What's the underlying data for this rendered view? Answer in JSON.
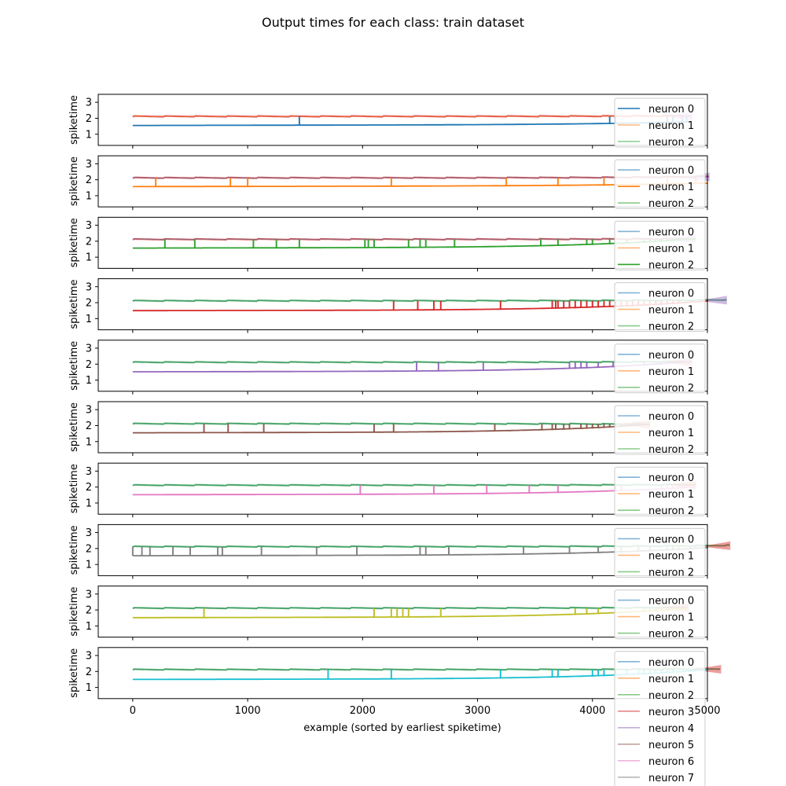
{
  "chart_data": {
    "type": "line",
    "title": "Output times for each class: train dataset",
    "xlabel": "example (sorted by earliest spiketime)",
    "ylabel": "spiketime",
    "xlim": [
      -300,
      5000
    ],
    "ylim": [
      0.3,
      3.5
    ],
    "xticks": [
      0,
      1000,
      2000,
      3000,
      4000,
      5000
    ],
    "yticks": [
      1,
      2,
      3
    ],
    "grid": false,
    "legend_placement": "right",
    "neuron_colors": [
      "#1f77b4",
      "#ff7f0e",
      "#2ca02c",
      "#d62728",
      "#9467bd",
      "#8c564b",
      "#e377c2",
      "#7f7f7f",
      "#bcbd22",
      "#17becf"
    ],
    "other_level": 2.12,
    "legend_names_shown": [
      "neuron 0",
      "neuron 1",
      "neuron 2",
      "neuron 3",
      "neuron 4",
      "neuron 5",
      "neuron 6",
      "neuron 7"
    ],
    "panels": [
      {
        "class": 0,
        "n": 4870,
        "start": 1.55,
        "end": 1.72,
        "other_end": 2.16,
        "spikes": [
          1450,
          4150,
          4200,
          4650,
          4700,
          4780,
          4820
        ]
      },
      {
        "class": 1,
        "n": 5020,
        "start": 1.57,
        "end": 1.73,
        "other_end": 2.2,
        "spikes": [
          200,
          850,
          1000,
          2250,
          3250,
          3700,
          4100,
          4650,
          4900
        ]
      },
      {
        "class": 2,
        "n": 4900,
        "start": 1.57,
        "end": 2.1,
        "other_end": 2.16,
        "spikes": [
          280,
          540,
          1050,
          1250,
          1450,
          2020,
          2050,
          2100,
          2400,
          2500,
          2550,
          2800,
          3550,
          3700,
          3950,
          4000,
          4150,
          4300,
          4450,
          4500,
          4550,
          4600,
          4650,
          4700,
          4750
        ]
      },
      {
        "class": 3,
        "n": 5170,
        "start": 1.5,
        "end": 2.15,
        "other_end": 2.18,
        "spikes": [
          2270,
          2480,
          2620,
          2680,
          3200,
          3650,
          3680,
          3700,
          3750,
          3800,
          3850,
          3900,
          3950,
          4000,
          4050,
          4100,
          4150,
          4200,
          4250,
          4300,
          4350,
          4400,
          4450,
          4500,
          4550,
          4600,
          4650,
          4700,
          4750
        ]
      },
      {
        "class": 4,
        "n": 4870,
        "start": 1.52,
        "end": 2.12,
        "other_end": 2.16,
        "spikes": [
          2470,
          2660,
          3050,
          3800,
          3850,
          3900,
          3950,
          4050,
          4180,
          4450,
          4600,
          4650,
          4700,
          4750
        ]
      },
      {
        "class": 5,
        "n": 4500,
        "start": 1.55,
        "end": 2.02,
        "other_end": 2.08,
        "spikes": [
          620,
          830,
          1140,
          2100,
          2270,
          3150,
          3560,
          3650,
          3680,
          3750,
          3800,
          3900,
          3950,
          4000,
          4050,
          4100,
          4150,
          4200,
          4250
        ]
      },
      {
        "class": 6,
        "n": 4900,
        "start": 1.52,
        "end": 1.95,
        "other_end": 2.16,
        "spikes": [
          1980,
          2620,
          3080,
          3450,
          3700,
          4200,
          4250,
          4600,
          4650,
          4700,
          4750,
          4800
        ]
      },
      {
        "class": 7,
        "n": 5200,
        "start": 1.55,
        "end": 2.1,
        "other_end": 2.2,
        "spikes": [
          0,
          80,
          150,
          350,
          500,
          740,
          780,
          1120,
          1600,
          1950,
          2500,
          2550,
          2750,
          3400,
          3800,
          4050,
          4250,
          4400,
          4500,
          4650,
          4700,
          4750,
          4850,
          4900
        ]
      },
      {
        "class": 8,
        "n": 4840,
        "start": 1.52,
        "end": 2.05,
        "other_end": 2.16,
        "spikes": [
          620,
          2100,
          2250,
          2300,
          2350,
          2400,
          2680,
          3850,
          3950,
          4050,
          4450,
          4500,
          4550,
          4600,
          4650,
          4700
        ]
      },
      {
        "class": 9,
        "n": 5120,
        "start": 1.5,
        "end": 2.12,
        "other_end": 2.16,
        "spikes": [
          1700,
          2250,
          3200,
          3650,
          3700,
          4000,
          4050,
          4100,
          4200,
          4300,
          4400,
          4450,
          4500,
          4550,
          4600,
          4650,
          4700
        ]
      }
    ]
  }
}
